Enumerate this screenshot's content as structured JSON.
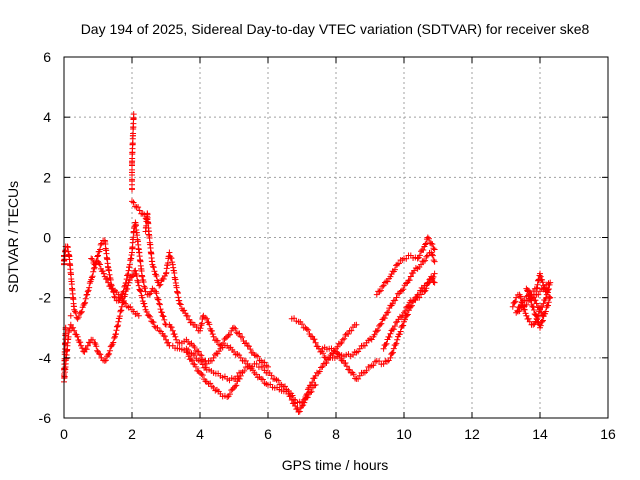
{
  "chart_data": {
    "type": "scatter",
    "title": "Day 194 of 2025, Sidereal Day-to-day VTEC variation (SDTVAR) for receiver ske8",
    "xlabel": "GPS time / hours",
    "ylabel": "SDTVAR / TECUs",
    "xlim": [
      0,
      16
    ],
    "ylim": [
      -6,
      6
    ],
    "xticks": [
      0,
      2,
      4,
      6,
      8,
      10,
      12,
      14,
      16
    ],
    "yticks": [
      -6,
      -4,
      -2,
      0,
      2,
      4,
      6
    ],
    "xtick_labels": [
      "0",
      "2",
      "4",
      "6",
      "8",
      "10",
      "12",
      "14",
      "16"
    ],
    "ytick_labels": [
      "-6",
      "-4",
      "-2",
      "0",
      "2",
      "4",
      "6"
    ],
    "grid": true,
    "marker": "+",
    "marker_color": "#ff0000",
    "series": [
      {
        "points": [
          [
            0.0,
            -4.8
          ],
          [
            0.05,
            -4.2
          ],
          [
            0.1,
            -3.6
          ],
          [
            0.15,
            -3.1
          ],
          [
            0.2,
            -2.9
          ],
          [
            0.3,
            -3.1
          ],
          [
            0.4,
            -3.3
          ],
          [
            0.5,
            -3.6
          ],
          [
            0.6,
            -3.8
          ],
          [
            0.7,
            -3.6
          ],
          [
            0.8,
            -3.4
          ],
          [
            0.9,
            -3.5
          ],
          [
            1.0,
            -3.8
          ],
          [
            1.1,
            -4.0
          ],
          [
            1.2,
            -4.1
          ],
          [
            1.3,
            -3.9
          ],
          [
            1.4,
            -3.6
          ],
          [
            1.5,
            -3.3
          ],
          [
            1.6,
            -2.8
          ],
          [
            1.7,
            -2.3
          ],
          [
            1.8,
            -1.9
          ],
          [
            1.9,
            -1.5
          ],
          [
            2.0,
            -1.3
          ],
          [
            2.1,
            -1.1
          ],
          [
            2.2,
            -1.6
          ],
          [
            2.3,
            -2.0
          ],
          [
            2.4,
            -2.4
          ],
          [
            2.5,
            -2.6
          ],
          [
            2.6,
            -2.8
          ],
          [
            2.7,
            -3.0
          ],
          [
            2.8,
            -3.1
          ],
          [
            2.9,
            -3.2
          ],
          [
            3.0,
            -3.4
          ],
          [
            3.1,
            -3.6
          ],
          [
            3.2,
            -3.6
          ],
          [
            3.4,
            -3.7
          ],
          [
            3.6,
            -3.7
          ],
          [
            3.8,
            -3.9
          ],
          [
            4.0,
            -4.1
          ],
          [
            4.2,
            -4.4
          ],
          [
            4.4,
            -4.5
          ],
          [
            4.6,
            -4.6
          ],
          [
            4.8,
            -4.7
          ],
          [
            5.0,
            -4.7
          ],
          [
            5.2,
            -4.5
          ],
          [
            5.4,
            -4.3
          ],
          [
            5.6,
            -4.2
          ],
          [
            5.8,
            -4.3
          ],
          [
            6.0,
            -4.5
          ],
          [
            6.2,
            -4.7
          ],
          [
            6.4,
            -4.9
          ],
          [
            6.6,
            -5.1
          ],
          [
            6.8,
            -5.4
          ],
          [
            7.0,
            -5.5
          ],
          [
            7.1,
            -5.3
          ],
          [
            7.2,
            -5.0
          ],
          [
            7.4,
            -4.6
          ],
          [
            7.6,
            -4.3
          ],
          [
            7.8,
            -4.0
          ],
          [
            8.0,
            -3.7
          ],
          [
            8.2,
            -3.4
          ],
          [
            8.4,
            -3.1
          ],
          [
            8.6,
            -2.9
          ]
        ]
      },
      {
        "points": [
          [
            0.1,
            -0.3
          ],
          [
            0.15,
            -0.6
          ],
          [
            0.3,
            -2.4
          ],
          [
            0.4,
            -2.7
          ],
          [
            0.5,
            -2.5
          ],
          [
            0.6,
            -2.2
          ],
          [
            0.7,
            -1.8
          ],
          [
            0.8,
            -1.4
          ],
          [
            0.9,
            -1.0
          ],
          [
            1.0,
            -0.6
          ],
          [
            1.1,
            -0.2
          ],
          [
            1.2,
            -0.1
          ],
          [
            1.3,
            -1.0
          ],
          [
            1.4,
            -1.6
          ],
          [
            1.5,
            -2.0
          ],
          [
            1.6,
            -2.1
          ],
          [
            1.7,
            -1.9
          ],
          [
            1.8,
            -1.6
          ],
          [
            1.9,
            -1.1
          ],
          [
            2.0,
            -0.5
          ],
          [
            2.05,
            0.2
          ],
          [
            2.1,
            0.5
          ],
          [
            2.2,
            -0.4
          ],
          [
            2.3,
            -1.3
          ],
          [
            2.4,
            -1.8
          ],
          [
            2.5,
            -1.9
          ],
          [
            2.6,
            -1.7
          ],
          [
            2.7,
            -1.8
          ],
          [
            2.8,
            -2.2
          ],
          [
            2.9,
            -2.6
          ],
          [
            3.0,
            -2.9
          ],
          [
            3.1,
            -2.9
          ],
          [
            3.2,
            -3.1
          ],
          [
            3.3,
            -3.4
          ],
          [
            3.4,
            -3.5
          ],
          [
            3.6,
            -3.4
          ],
          [
            3.8,
            -3.6
          ],
          [
            4.0,
            -3.9
          ],
          [
            4.2,
            -4.2
          ],
          [
            4.4,
            -4.0
          ],
          [
            4.6,
            -3.7
          ],
          [
            4.8,
            -3.6
          ],
          [
            5.0,
            -3.8
          ],
          [
            5.2,
            -4.0
          ],
          [
            5.4,
            -4.2
          ],
          [
            5.6,
            -4.5
          ],
          [
            5.8,
            -4.7
          ],
          [
            6.0,
            -4.9
          ],
          [
            6.2,
            -5.0
          ],
          [
            6.4,
            -5.1
          ],
          [
            6.6,
            -5.2
          ],
          [
            6.8,
            -5.6
          ],
          [
            6.9,
            -5.8
          ],
          [
            7.0,
            -5.6
          ],
          [
            7.2,
            -5.2
          ],
          [
            7.4,
            -4.9
          ]
        ]
      },
      {
        "points": [
          [
            0.8,
            -0.7
          ],
          [
            0.9,
            -0.9
          ],
          [
            1.0,
            -0.8
          ],
          [
            1.2,
            -1.3
          ],
          [
            1.4,
            -1.7
          ],
          [
            1.6,
            -1.9
          ],
          [
            1.8,
            -2.2
          ],
          [
            2.0,
            -2.4
          ],
          [
            2.2,
            -2.6
          ],
          [
            2.4,
            0.2
          ],
          [
            2.45,
            0.8
          ],
          [
            2.5,
            0.1
          ],
          [
            2.6,
            -0.9
          ],
          [
            2.8,
            -1.6
          ],
          [
            3.0,
            -1.2
          ],
          [
            3.1,
            -0.5
          ],
          [
            3.2,
            -0.9
          ],
          [
            3.3,
            -1.6
          ],
          [
            3.4,
            -2.2
          ],
          [
            3.6,
            -2.6
          ],
          [
            3.8,
            -2.9
          ],
          [
            4.0,
            -3.1
          ],
          [
            4.1,
            -2.6
          ],
          [
            4.2,
            -2.7
          ],
          [
            4.4,
            -3.3
          ],
          [
            4.6,
            -3.6
          ],
          [
            4.8,
            -3.3
          ],
          [
            5.0,
            -3.0
          ],
          [
            5.2,
            -3.3
          ],
          [
            5.4,
            -3.6
          ],
          [
            5.6,
            -3.9
          ],
          [
            5.8,
            -4.1
          ],
          [
            6.0,
            -4.3
          ]
        ]
      },
      {
        "points": [
          [
            3.6,
            -3.8
          ],
          [
            3.8,
            -4.2
          ],
          [
            4.0,
            -4.5
          ],
          [
            4.2,
            -4.8
          ],
          [
            4.4,
            -5.0
          ],
          [
            4.6,
            -5.2
          ],
          [
            4.8,
            -5.3
          ],
          [
            5.0,
            -5.0
          ],
          [
            5.2,
            -4.6
          ]
        ]
      },
      {
        "points": [
          [
            6.7,
            -2.7
          ],
          [
            6.9,
            -2.8
          ],
          [
            7.1,
            -3.0
          ],
          [
            7.3,
            -3.3
          ],
          [
            7.5,
            -3.7
          ],
          [
            7.7,
            -4.0
          ],
          [
            7.9,
            -4.0
          ],
          [
            8.1,
            -3.9
          ],
          [
            8.3,
            -3.9
          ],
          [
            8.5,
            -3.9
          ],
          [
            8.7,
            -3.7
          ],
          [
            8.9,
            -3.5
          ],
          [
            9.1,
            -3.3
          ],
          [
            9.3,
            -2.9
          ],
          [
            9.5,
            -2.5
          ],
          [
            9.7,
            -2.1
          ],
          [
            9.9,
            -1.8
          ],
          [
            10.1,
            -1.5
          ],
          [
            10.3,
            -1.1
          ],
          [
            10.5,
            -0.9
          ],
          [
            10.7,
            -0.6
          ],
          [
            10.8,
            -0.5
          ],
          [
            10.9,
            -0.8
          ]
        ]
      },
      {
        "points": [
          [
            7.6,
            -3.7
          ],
          [
            7.8,
            -3.7
          ],
          [
            8.0,
            -3.8
          ],
          [
            8.2,
            -4.1
          ],
          [
            8.4,
            -4.4
          ],
          [
            8.6,
            -4.7
          ],
          [
            8.8,
            -4.5
          ],
          [
            9.0,
            -4.3
          ],
          [
            9.2,
            -4.1
          ],
          [
            9.4,
            -4.2
          ],
          [
            9.6,
            -4.0
          ],
          [
            9.8,
            -3.4
          ],
          [
            10.0,
            -2.8
          ],
          [
            10.2,
            -2.3
          ],
          [
            10.4,
            -1.9
          ],
          [
            10.6,
            -1.6
          ],
          [
            10.8,
            -1.4
          ],
          [
            10.9,
            -1.2
          ]
        ]
      },
      {
        "points": [
          [
            9.2,
            -1.9
          ],
          [
            9.4,
            -1.6
          ],
          [
            9.6,
            -1.3
          ],
          [
            9.8,
            -0.9
          ],
          [
            10.0,
            -0.7
          ],
          [
            10.2,
            -0.6
          ],
          [
            10.4,
            -0.7
          ],
          [
            10.6,
            -0.3
          ],
          [
            10.7,
            0.0
          ],
          [
            10.8,
            -0.2
          ],
          [
            10.9,
            -0.4
          ]
        ]
      },
      {
        "points": [
          [
            9.4,
            -3.7
          ],
          [
            9.6,
            -3.2
          ],
          [
            9.8,
            -2.8
          ],
          [
            10.0,
            -2.5
          ],
          [
            10.2,
            -2.1
          ],
          [
            10.4,
            -2.0
          ],
          [
            10.6,
            -1.8
          ],
          [
            10.8,
            -1.3
          ],
          [
            10.9,
            -1.5
          ]
        ]
      },
      {
        "points": [
          [
            13.2,
            -2.3
          ],
          [
            13.3,
            -2.0
          ],
          [
            13.4,
            -1.9
          ],
          [
            13.5,
            -2.3
          ],
          [
            13.6,
            -2.6
          ],
          [
            13.7,
            -2.8
          ],
          [
            13.8,
            -2.9
          ],
          [
            13.9,
            -2.7
          ],
          [
            14.0,
            -2.4
          ],
          [
            14.1,
            -2.2
          ],
          [
            14.2,
            -1.9
          ],
          [
            14.3,
            -1.5
          ],
          [
            13.3,
            -2.5
          ],
          [
            13.5,
            -2.1
          ],
          [
            13.7,
            -1.9
          ],
          [
            13.9,
            -1.7
          ],
          [
            14.0,
            -1.2
          ],
          [
            14.1,
            -1.6
          ],
          [
            14.2,
            -1.8
          ],
          [
            14.3,
            -2.0
          ],
          [
            14.0,
            -3.0
          ],
          [
            13.6,
            -1.7
          ],
          [
            13.8,
            -2.0
          ],
          [
            14.1,
            -2.6
          ]
        ]
      },
      {
        "points": [
          [
            0.0,
            -0.6
          ],
          [
            0.0,
            -0.9
          ],
          [
            0.05,
            -0.3
          ],
          [
            0.0,
            -4.6
          ],
          [
            0.05,
            -3.0
          ],
          [
            2.0,
            1.6
          ],
          [
            2.0,
            2.5
          ],
          [
            2.05,
            4.1
          ],
          [
            2.0,
            1.2
          ],
          [
            2.45,
            0.6
          ],
          [
            0.2,
            -2.6
          ]
        ]
      }
    ]
  }
}
